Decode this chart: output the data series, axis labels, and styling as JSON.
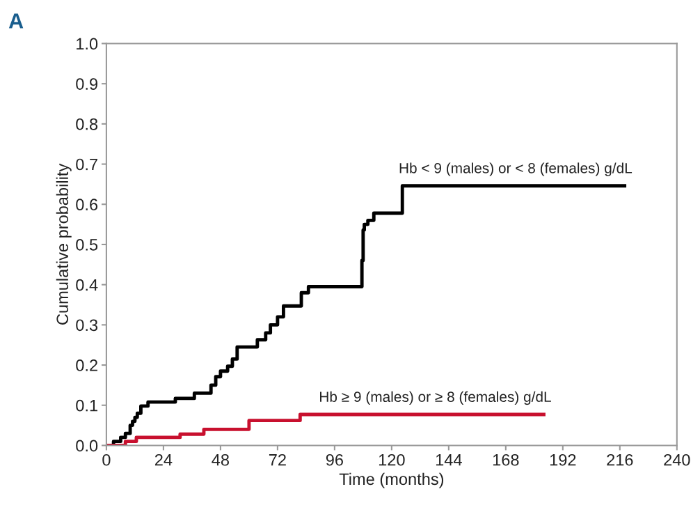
{
  "chart_data": {
    "type": "step",
    "xlabel": "Time (months)",
    "ylabel": "Cumulative probability",
    "annotations": [
      "A"
    ],
    "xlim": [
      0,
      240
    ],
    "xticks": [
      0,
      24,
      48,
      72,
      96,
      120,
      144,
      168,
      192,
      216,
      240
    ],
    "ylim": [
      0,
      1.0
    ],
    "yticks": [
      {
        "value": 0,
        "label": "0.0"
      },
      0.1,
      0.2,
      0.3,
      0.4,
      0.5,
      0.6,
      0.7,
      0.8,
      0.9,
      {
        "value": 1,
        "label": "1.0"
      }
    ],
    "grid": false,
    "legend": false,
    "line_style": "solid",
    "marker": "none",
    "series": [
      {
        "name": "Hb < 9 (males) or < 8 (females) g/dL",
        "color": "#000000",
        "x": [
          0,
          3,
          6,
          8,
          10,
          11,
          12,
          13,
          14.5,
          17.5,
          29,
          37,
          44,
          46,
          48,
          51,
          53,
          55,
          63.5,
          67,
          69,
          72,
          74.5,
          82,
          85,
          107.5,
          108,
          108.5,
          110,
          112.5,
          124.5,
          218
        ],
        "values": [
          0,
          0.01,
          0.02,
          0.03,
          0.05,
          0.06,
          0.07,
          0.08,
          0.098,
          0.108,
          0.117,
          0.13,
          0.15,
          0.171,
          0.185,
          0.197,
          0.215,
          0.245,
          0.263,
          0.28,
          0.3,
          0.32,
          0.347,
          0.38,
          0.395,
          0.46,
          0.536,
          0.55,
          0.56,
          0.578,
          0.646,
          0.646
        ]
      },
      {
        "name": "Hb ≥ 9 (males) or ≥ 8 (females) g/dL",
        "color": "#c8102e",
        "x": [
          0,
          8,
          12.6,
          31,
          41,
          60,
          81.5,
          184
        ],
        "values": [
          0,
          0.01,
          0.02,
          0.028,
          0.04,
          0.062,
          0.077,
          0.077
        ]
      }
    ]
  }
}
